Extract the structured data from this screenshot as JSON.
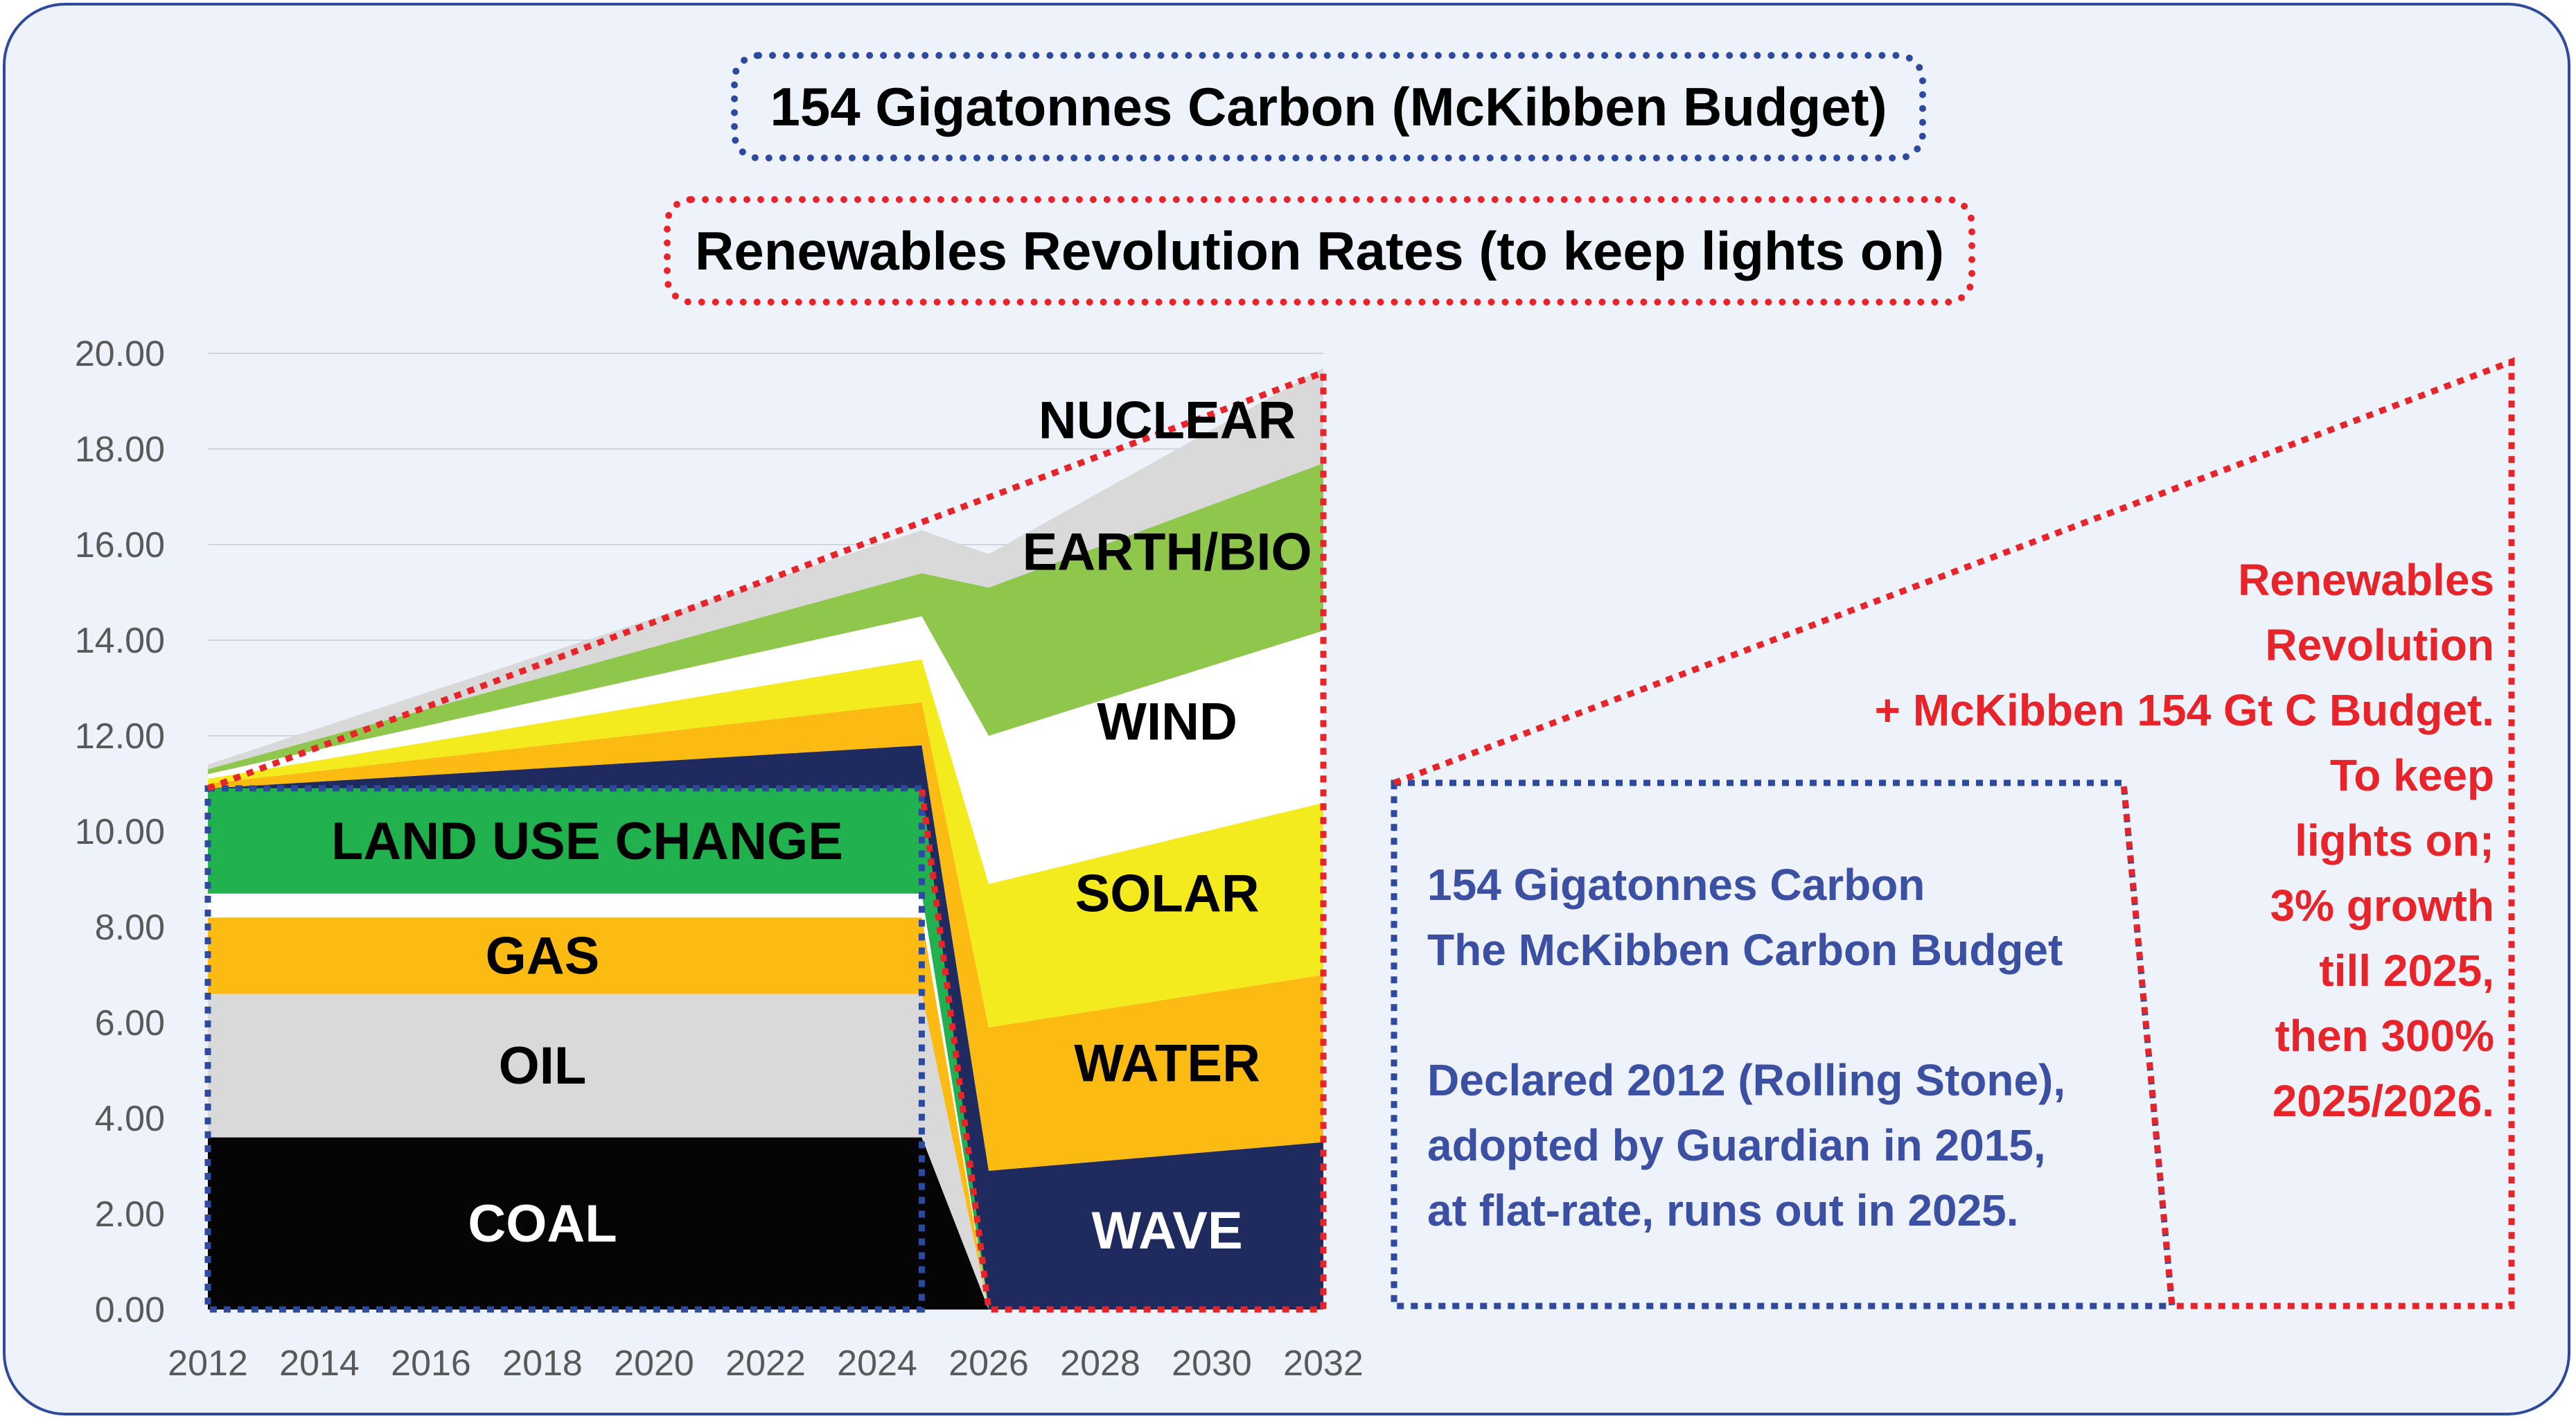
{
  "title_top": "154 Gigatonnes Carbon (McKibben Budget)",
  "title_second": "Renewables Revolution Rates (to keep lights on)",
  "chart_data": {
    "type": "area",
    "stacked": true,
    "ylim": [
      0,
      20
    ],
    "xlim": [
      2012,
      2032
    ],
    "yticks": [
      "0.00",
      "2.00",
      "4.00",
      "6.00",
      "8.00",
      "10.00",
      "12.00",
      "14.00",
      "16.00",
      "18.00",
      "20.00"
    ],
    "xticks": [
      "2012",
      "2014",
      "2016",
      "2018",
      "2020",
      "2022",
      "2024",
      "2026",
      "2028",
      "2030",
      "2032"
    ],
    "x": [
      2012,
      2024.8,
      2026,
      2032
    ],
    "fossil_series": [
      {
        "name": "COAL",
        "color": "#050505",
        "label_color": "#ffffff",
        "values": [
          3.6,
          3.6,
          0,
          0
        ]
      },
      {
        "name": "OIL",
        "color": "#d9d9d9",
        "label_color": "#000000",
        "values": [
          3.0,
          3.0,
          0,
          0
        ]
      },
      {
        "name": "GAS",
        "color": "#fbbb12",
        "label_color": "#000000",
        "values": [
          1.6,
          1.6,
          0,
          0
        ]
      },
      {
        "name": "(white band)",
        "color": "#ffffff",
        "label_color": "#000000",
        "values": [
          0.5,
          0.5,
          0,
          0
        ]
      },
      {
        "name": "LAND USE CHANGE",
        "color": "#21b14f",
        "label_color": "#000000",
        "values": [
          2.2,
          2.2,
          0,
          0
        ]
      }
    ],
    "renewable_series": [
      {
        "name": "WAVE",
        "color": "#1f2a5e",
        "label_color": "#ffffff",
        "values": [
          0,
          0.9,
          2.9,
          3.5
        ]
      },
      {
        "name": "WATER",
        "color": "#fbbb12",
        "label_color": "#000000",
        "values": [
          0.1,
          0.9,
          3.0,
          3.5
        ]
      },
      {
        "name": "SOLAR",
        "color": "#f4eb1e",
        "label_color": "#000000",
        "values": [
          0.1,
          0.9,
          3.0,
          3.6
        ]
      },
      {
        "name": "WIND",
        "color": "#ffffff",
        "label_color": "#000000",
        "values": [
          0.1,
          0.9,
          3.1,
          3.6
        ]
      },
      {
        "name": "EARTH/BIO",
        "color": "#8fc74d",
        "label_color": "#000000",
        "values": [
          0.1,
          0.9,
          3.1,
          3.5
        ]
      },
      {
        "name": "NUCLEAR",
        "color": "#d9d9d9",
        "label_color": "#000000",
        "values": [
          0.1,
          0.9,
          0.7,
          2.0
        ]
      }
    ],
    "budget_envelope": {
      "x": [
        2012,
        2024.8
      ],
      "y": [
        10.9,
        10.9
      ],
      "label": "154 Gigatonnes Carbon The McKibben Carbon Budget"
    },
    "renewables_envelope": {
      "x": [
        2012,
        2032
      ],
      "y": [
        10.9,
        19.6
      ],
      "label": "Renewables Revolution + McKibben 154 Gt C Budget"
    }
  },
  "blue_note": {
    "line1": "154 Gigatonnes Carbon",
    "line2": "The McKibben Carbon Budget",
    "line3": "Declared 2012 (Rolling Stone),",
    "line4": "adopted by Guardian in 2015,",
    "line5": "at flat-rate, runs out in 2025."
  },
  "red_note": {
    "line1": "Renewables",
    "line2": "Revolution",
    "line3": "+ McKibben 154 Gt C Budget.",
    "line4": "To keep",
    "line5": "lights on;",
    "line6": "3% growth",
    "line7": "till 2025,",
    "line8": "then 300%",
    "line9": "2025/2026."
  },
  "colors": {
    "frame": "#2e4a9e",
    "background": "#eef2fa",
    "blue_dotted": "#2e4a9e",
    "red_dotted": "#e8242b"
  }
}
